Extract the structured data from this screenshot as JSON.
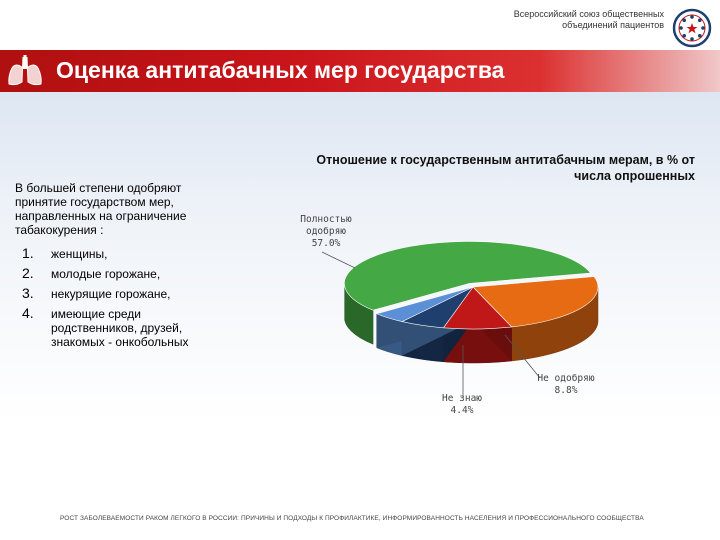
{
  "header": {
    "org_name": "Всероссийский союз общественных объединений пациентов",
    "logo_icon": "star-circle-logo-icon"
  },
  "title_bar": {
    "icon": "lungs-icon",
    "title": "Оценка антитабачных мер государства"
  },
  "left_panel": {
    "intro": "В большей степени одобряют принятие государством мер, направленных на ограничение табакокурения :",
    "items": [
      {
        "num": "1.",
        "text": "женщины,"
      },
      {
        "num": "2.",
        "text": "молодые горожане,"
      },
      {
        "num": "3.",
        "text": "некурящие горожане,"
      },
      {
        "num": "4.",
        "text": "имеющие среди родственников, друзей, знакомых - онкобольных"
      }
    ]
  },
  "chart_data": {
    "type": "pie",
    "title": "Отношение к государственным антитабачным мерам, в % от числа опрошенных",
    "slices": [
      {
        "label": "Полностью одобряю",
        "value": 57.0,
        "value_label": "57.0%",
        "color": "#44a844"
      },
      {
        "label": "",
        "value": 24.0,
        "value_label": "",
        "color": "#e76b12"
      },
      {
        "label": "Не одобряю",
        "value": 8.8,
        "value_label": "8.8%",
        "color": "#c01818"
      },
      {
        "label": "",
        "value": 5.8,
        "value_label": "",
        "color": "#1f3f6e"
      },
      {
        "label": "Не знаю",
        "value": 4.4,
        "value_label": "4.4%",
        "color": "#5b8fd6"
      }
    ]
  },
  "footer": {
    "text": "РОСТ ЗАБОЛЕВАЕМОСТИ РАКОМ ЛЕГКОГО В РОССИИ: ПРИЧИНЫ И ПОДХОДЫ К ПРОФИЛАКТИКЕ, ИНФОРМИРОВАННОСТЬ НАСЕЛЕНИЯ И ПРОФЕССИОНАЛЬНОГО СООБЩЕСТВА"
  },
  "colors": {
    "title_bar": "#c9141a",
    "accent_blue": "#1f3f6e"
  }
}
